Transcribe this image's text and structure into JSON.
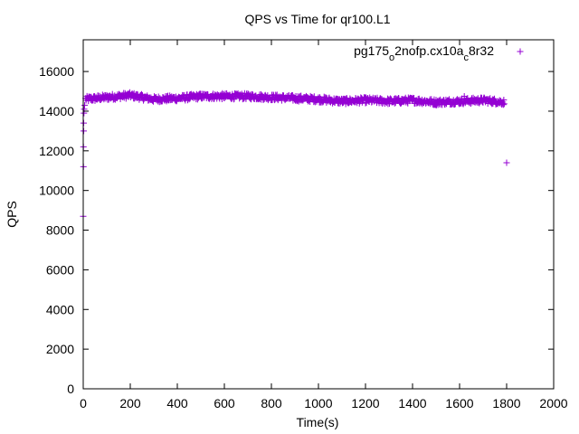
{
  "chart_data": {
    "type": "scatter",
    "title": "QPS vs Time for qr100.L1",
    "xlabel": "Time(s)",
    "ylabel": "QPS",
    "xlim": [
      0,
      2000
    ],
    "ylim": [
      0,
      17600
    ],
    "xticks": [
      0,
      200,
      400,
      600,
      800,
      1000,
      1200,
      1400,
      1600,
      1800,
      2000
    ],
    "yticks": [
      0,
      2000,
      4000,
      6000,
      8000,
      10000,
      12000,
      14000,
      16000
    ],
    "grid": false,
    "legend_position": "top-right",
    "marker": "+",
    "series": [
      {
        "name": "pg175_o2nofp.cx10a_c8r32",
        "name_parts": [
          {
            "text": "pg175",
            "sub": false
          },
          {
            "text": "o",
            "sub": true
          },
          {
            "text": "2nofp.cx10a",
            "sub": false
          },
          {
            "text": "c",
            "sub": true
          },
          {
            "text": "8r32",
            "sub": false
          }
        ],
        "color": "#9400d3",
        "startup_points": [
          {
            "x": 0,
            "y": 8700
          },
          {
            "x": 1,
            "y": 11200
          },
          {
            "x": 1,
            "y": 12200
          },
          {
            "x": 2,
            "y": 13000
          },
          {
            "x": 2,
            "y": 13400
          },
          {
            "x": 3,
            "y": 13900
          },
          {
            "x": 4,
            "y": 14100
          },
          {
            "x": 6,
            "y": 14300
          }
        ],
        "steady_profile": [
          {
            "x": 10,
            "y": 14600
          },
          {
            "x": 100,
            "y": 14700
          },
          {
            "x": 200,
            "y": 14800
          },
          {
            "x": 300,
            "y": 14600
          },
          {
            "x": 400,
            "y": 14650
          },
          {
            "x": 500,
            "y": 14750
          },
          {
            "x": 600,
            "y": 14750
          },
          {
            "x": 700,
            "y": 14750
          },
          {
            "x": 800,
            "y": 14700
          },
          {
            "x": 900,
            "y": 14650
          },
          {
            "x": 1000,
            "y": 14600
          },
          {
            "x": 1100,
            "y": 14500
          },
          {
            "x": 1200,
            "y": 14550
          },
          {
            "x": 1300,
            "y": 14500
          },
          {
            "x": 1400,
            "y": 14550
          },
          {
            "x": 1500,
            "y": 14450
          },
          {
            "x": 1600,
            "y": 14500
          },
          {
            "x": 1700,
            "y": 14550
          },
          {
            "x": 1790,
            "y": 14450
          }
        ],
        "band_spread": 300,
        "sample_interval": 2,
        "outliers": [
          {
            "x": 1620,
            "y": 14750
          },
          {
            "x": 1800,
            "y": 11400
          }
        ]
      }
    ]
  }
}
